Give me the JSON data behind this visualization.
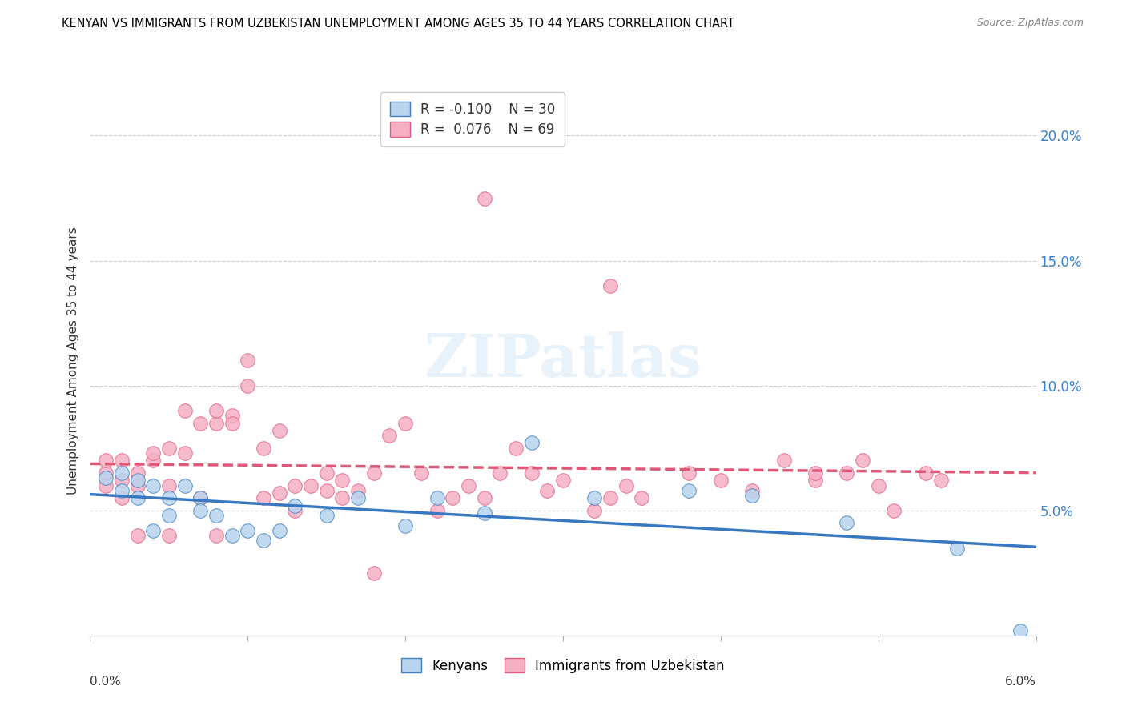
{
  "title": "KENYAN VS IMMIGRANTS FROM UZBEKISTAN UNEMPLOYMENT AMONG AGES 35 TO 44 YEARS CORRELATION CHART",
  "source": "Source: ZipAtlas.com",
  "ylabel": "Unemployment Among Ages 35 to 44 years",
  "right_y_ticks": [
    0.05,
    0.1,
    0.15,
    0.2
  ],
  "right_y_labels": [
    "5.0%",
    "10.0%",
    "15.0%",
    "20.0%"
  ],
  "x_min": 0.0,
  "x_max": 0.06,
  "y_min": 0.0,
  "y_max": 0.22,
  "legend_blue_R": "-0.100",
  "legend_blue_N": "30",
  "legend_pink_R": "0.076",
  "legend_pink_N": "69",
  "legend_label_blue": "Kenyans",
  "legend_label_pink": "Immigrants from Uzbekistan",
  "blue_fill": "#b8d4ee",
  "blue_edge": "#4080c0",
  "pink_fill": "#f5b0c5",
  "pink_edge": "#e06080",
  "blue_line": "#3878c0",
  "pink_line": "#e05878",
  "grid_color": "#cccccc",
  "watermark": "ZIPatlas",
  "blue_x": [
    0.001,
    0.002,
    0.002,
    0.003,
    0.003,
    0.004,
    0.004,
    0.005,
    0.005,
    0.006,
    0.007,
    0.007,
    0.008,
    0.009,
    0.01,
    0.011,
    0.012,
    0.013,
    0.015,
    0.017,
    0.02,
    0.022,
    0.025,
    0.028,
    0.032,
    0.038,
    0.042,
    0.048,
    0.055,
    0.059
  ],
  "blue_y": [
    0.063,
    0.065,
    0.058,
    0.062,
    0.055,
    0.06,
    0.042,
    0.055,
    0.048,
    0.06,
    0.055,
    0.05,
    0.048,
    0.04,
    0.042,
    0.038,
    0.042,
    0.052,
    0.048,
    0.055,
    0.044,
    0.055,
    0.049,
    0.077,
    0.055,
    0.058,
    0.056,
    0.045,
    0.035,
    0.002
  ],
  "pink_x": [
    0.001,
    0.001,
    0.001,
    0.002,
    0.002,
    0.002,
    0.003,
    0.003,
    0.003,
    0.004,
    0.004,
    0.005,
    0.005,
    0.005,
    0.006,
    0.006,
    0.007,
    0.007,
    0.008,
    0.008,
    0.008,
    0.009,
    0.009,
    0.01,
    0.01,
    0.011,
    0.011,
    0.012,
    0.012,
    0.013,
    0.013,
    0.014,
    0.015,
    0.015,
    0.016,
    0.016,
    0.017,
    0.018,
    0.019,
    0.02,
    0.021,
    0.022,
    0.023,
    0.024,
    0.025,
    0.026,
    0.027,
    0.028,
    0.029,
    0.03,
    0.032,
    0.033,
    0.034,
    0.035,
    0.038,
    0.04,
    0.042,
    0.044,
    0.046,
    0.048,
    0.049,
    0.05,
    0.051,
    0.053,
    0.054,
    0.046,
    0.033,
    0.025,
    0.018
  ],
  "pink_y": [
    0.065,
    0.07,
    0.06,
    0.062,
    0.055,
    0.07,
    0.065,
    0.06,
    0.04,
    0.07,
    0.073,
    0.075,
    0.06,
    0.04,
    0.073,
    0.09,
    0.085,
    0.055,
    0.085,
    0.09,
    0.04,
    0.088,
    0.085,
    0.1,
    0.11,
    0.055,
    0.075,
    0.082,
    0.057,
    0.06,
    0.05,
    0.06,
    0.058,
    0.065,
    0.055,
    0.062,
    0.058,
    0.065,
    0.08,
    0.085,
    0.065,
    0.05,
    0.055,
    0.06,
    0.055,
    0.065,
    0.075,
    0.065,
    0.058,
    0.062,
    0.05,
    0.055,
    0.06,
    0.055,
    0.065,
    0.062,
    0.058,
    0.07,
    0.062,
    0.065,
    0.07,
    0.06,
    0.05,
    0.065,
    0.062,
    0.065,
    0.14,
    0.175,
    0.025
  ]
}
